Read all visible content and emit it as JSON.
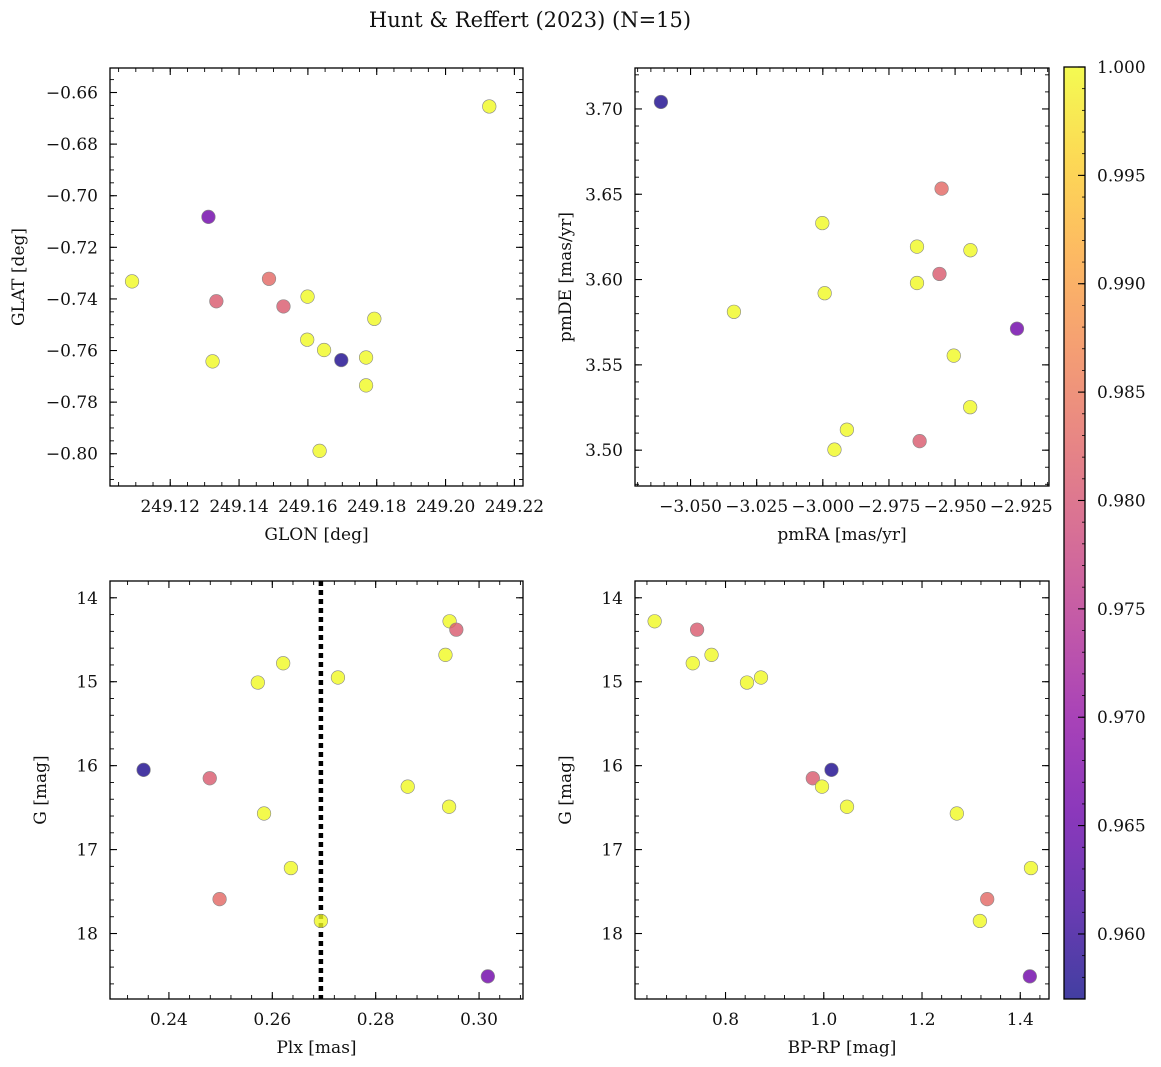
{
  "title": "Hunt & Reffert (2023) (N=15)",
  "colorbar": {
    "min": 0.957,
    "max": 1.0,
    "ticks": [
      0.96,
      0.965,
      0.97,
      0.975,
      0.98,
      0.985,
      0.99,
      0.995,
      1.0
    ],
    "tick_labels": [
      "0.960",
      "0.965",
      "0.970",
      "0.975",
      "0.980",
      "0.985",
      "0.990",
      "0.995",
      "1.000"
    ],
    "colormap": "plasma"
  },
  "chart_data": [
    {
      "type": "scatter",
      "name": "glon-glat",
      "xlabel": "GLON [deg]",
      "ylabel": "GLAT [deg]",
      "xlim": [
        249.1025,
        249.2225
      ],
      "ylim": [
        -0.8125,
        -0.6505
      ],
      "y_inverted": false,
      "xticks": [
        249.12,
        249.14,
        249.16,
        249.18,
        249.2,
        249.22
      ],
      "xtick_labels": [
        "249.12",
        "249.14",
        "249.16",
        "249.18",
        "249.20",
        "249.22"
      ],
      "yticks": [
        -0.66,
        -0.68,
        -0.7,
        -0.72,
        -0.74,
        -0.76,
        -0.78,
        -0.8
      ],
      "ytick_labels": [
        "−0.66",
        "−0.68",
        "−0.70",
        "−0.72",
        "−0.74",
        "−0.76",
        "−0.78",
        "−0.80"
      ],
      "x_minor_step": 0.005,
      "y_minor_step": 0.005,
      "points": [
        {
          "x": 249.2127,
          "y": -0.6654,
          "p": 1.0
        },
        {
          "x": 249.1311,
          "y": -0.7082,
          "p": 0.966
        },
        {
          "x": 249.1089,
          "y": -0.7332,
          "p": 1.0
        },
        {
          "x": 249.1487,
          "y": -0.7322,
          "p": 0.983
        },
        {
          "x": 249.1334,
          "y": -0.7409,
          "p": 0.981
        },
        {
          "x": 249.1529,
          "y": -0.7429,
          "p": 0.981
        },
        {
          "x": 249.1599,
          "y": -0.7391,
          "p": 1.0
        },
        {
          "x": 249.1793,
          "y": -0.7477,
          "p": 1.0
        },
        {
          "x": 249.1598,
          "y": -0.7558,
          "p": 1.0
        },
        {
          "x": 249.1647,
          "y": -0.7598,
          "p": 1.0
        },
        {
          "x": 249.1323,
          "y": -0.7642,
          "p": 1.0
        },
        {
          "x": 249.1697,
          "y": -0.7637,
          "p": 0.958
        },
        {
          "x": 249.1769,
          "y": -0.7627,
          "p": 1.0
        },
        {
          "x": 249.1769,
          "y": -0.7735,
          "p": 1.0
        },
        {
          "x": 249.1634,
          "y": -0.7989,
          "p": 1.0
        }
      ]
    },
    {
      "type": "scatter",
      "name": "pmra-pmde",
      "xlabel": "pmRA [mas/yr]",
      "ylabel": "pmDE [mas/yr]",
      "xlim": [
        -3.071,
        -2.9145
      ],
      "ylim": [
        3.479,
        3.724
      ],
      "y_inverted": false,
      "xticks": [
        -3.05,
        -3.025,
        -3.0,
        -2.975,
        -2.95,
        -2.925
      ],
      "xtick_labels": [
        "−3.050",
        "−3.025",
        "−3.000",
        "−2.975",
        "−2.950",
        "−2.925"
      ],
      "yticks": [
        3.5,
        3.55,
        3.6,
        3.65,
        3.7
      ],
      "ytick_labels": [
        "3.50",
        "3.55",
        "3.60",
        "3.65",
        "3.70"
      ],
      "x_minor_step": 0.005,
      "y_minor_step": 0.01,
      "points": [
        {
          "x": -3.0612,
          "y": 3.7041,
          "p": 0.958
        },
        {
          "x": -2.9551,
          "y": 3.6533,
          "p": 0.983
        },
        {
          "x": -3.0002,
          "y": 3.6331,
          "p": 1.0
        },
        {
          "x": -2.9644,
          "y": 3.6193,
          "p": 1.0
        },
        {
          "x": -2.9442,
          "y": 3.6172,
          "p": 1.0
        },
        {
          "x": -2.9559,
          "y": 3.6033,
          "p": 0.981
        },
        {
          "x": -2.9644,
          "y": 3.598,
          "p": 1.0
        },
        {
          "x": -2.9993,
          "y": 3.592,
          "p": 1.0
        },
        {
          "x": -3.0336,
          "y": 3.5811,
          "p": 1.0
        },
        {
          "x": -2.9266,
          "y": 3.5712,
          "p": 0.966
        },
        {
          "x": -2.9505,
          "y": 3.5554,
          "p": 1.0
        },
        {
          "x": -2.9443,
          "y": 3.5252,
          "p": 1.0
        },
        {
          "x": -2.9909,
          "y": 3.512,
          "p": 1.0
        },
        {
          "x": -2.9634,
          "y": 3.5053,
          "p": 0.981
        },
        {
          "x": -2.9956,
          "y": 3.5003,
          "p": 1.0
        }
      ]
    },
    {
      "type": "scatter",
      "name": "plx-g",
      "xlabel": "Plx [mas]",
      "ylabel": "G [mag]",
      "xlim": [
        0.2286,
        0.3085
      ],
      "ylim": [
        13.8,
        18.78
      ],
      "y_inverted": true,
      "xticks": [
        0.24,
        0.26,
        0.28,
        0.3
      ],
      "xtick_labels": [
        "0.24",
        "0.26",
        "0.28",
        "0.30"
      ],
      "yticks": [
        14,
        15,
        16,
        17,
        18
      ],
      "ytick_labels": [
        "14",
        "15",
        "16",
        "17",
        "18"
      ],
      "x_minor_step": 0.004,
      "y_minor_step": 0.2,
      "vline": {
        "x": 0.2694,
        "style": "dotted",
        "color": "#000000"
      },
      "points": [
        {
          "x": 0.2943,
          "y": 14.28,
          "p": 1.0
        },
        {
          "x": 0.2956,
          "y": 14.38,
          "p": 0.981
        },
        {
          "x": 0.2935,
          "y": 14.68,
          "p": 1.0
        },
        {
          "x": 0.2621,
          "y": 14.78,
          "p": 1.0
        },
        {
          "x": 0.2727,
          "y": 14.95,
          "p": 1.0
        },
        {
          "x": 0.2572,
          "y": 15.01,
          "p": 1.0
        },
        {
          "x": 0.2351,
          "y": 16.05,
          "p": 0.958
        },
        {
          "x": 0.2479,
          "y": 16.15,
          "p": 0.981
        },
        {
          "x": 0.2862,
          "y": 16.25,
          "p": 1.0
        },
        {
          "x": 0.2942,
          "y": 16.49,
          "p": 1.0
        },
        {
          "x": 0.2584,
          "y": 16.57,
          "p": 1.0
        },
        {
          "x": 0.2636,
          "y": 17.22,
          "p": 1.0
        },
        {
          "x": 0.2498,
          "y": 17.59,
          "p": 0.983
        },
        {
          "x": 0.2694,
          "y": 17.85,
          "p": 1.0
        },
        {
          "x": 0.3017,
          "y": 18.51,
          "p": 0.966
        }
      ]
    },
    {
      "type": "scatter",
      "name": "bprp-g",
      "xlabel": "BP-RP [mag]",
      "ylabel": "G [mag]",
      "xlim": [
        0.6157,
        1.4585
      ],
      "ylim": [
        13.8,
        18.78
      ],
      "y_inverted": true,
      "xticks": [
        0.8,
        1.0,
        1.2,
        1.4
      ],
      "xtick_labels": [
        "0.8",
        "1.0",
        "1.2",
        "1.4"
      ],
      "yticks": [
        14,
        15,
        16,
        17,
        18
      ],
      "ytick_labels": [
        "14",
        "15",
        "16",
        "17",
        "18"
      ],
      "x_minor_step": 0.04,
      "y_minor_step": 0.2,
      "points": [
        {
          "x": 0.6557,
          "y": 14.28,
          "p": 1.0
        },
        {
          "x": 0.7421,
          "y": 14.38,
          "p": 0.981
        },
        {
          "x": 0.7715,
          "y": 14.68,
          "p": 1.0
        },
        {
          "x": 0.7333,
          "y": 14.78,
          "p": 1.0
        },
        {
          "x": 0.8722,
          "y": 14.95,
          "p": 1.0
        },
        {
          "x": 0.8437,
          "y": 15.01,
          "p": 1.0
        },
        {
          "x": 1.0157,
          "y": 16.05,
          "p": 0.958
        },
        {
          "x": 0.9777,
          "y": 16.15,
          "p": 0.981
        },
        {
          "x": 0.9964,
          "y": 16.25,
          "p": 1.0
        },
        {
          "x": 1.0473,
          "y": 16.49,
          "p": 1.0
        },
        {
          "x": 1.2709,
          "y": 16.57,
          "p": 1.0
        },
        {
          "x": 1.4218,
          "y": 17.22,
          "p": 1.0
        },
        {
          "x": 1.3327,
          "y": 17.59,
          "p": 0.983
        },
        {
          "x": 1.3178,
          "y": 17.85,
          "p": 1.0
        },
        {
          "x": 1.4195,
          "y": 18.51,
          "p": 0.966
        }
      ]
    }
  ]
}
